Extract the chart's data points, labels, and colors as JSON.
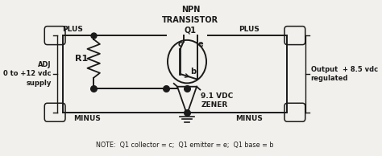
{
  "bg_color": "#f2f0ec",
  "line_color": "#1a1a1a",
  "title_text": "NPN\nTRANSISTOR\nQ1",
  "label_plus_left": "PLUS",
  "label_plus_right": "PLUS",
  "label_minus_left": "MINUS",
  "label_minus_right": "MINUS",
  "label_adj": "ADJ\n0 to +12 vdc\nsupply",
  "label_output": "Output  + 8.5 vdc\nregulated",
  "label_r1": "R1",
  "label_zener": "9.1 VDC\nZENER",
  "label_c": "c",
  "label_e": "e",
  "label_b": "b",
  "note": "NOTE:  Q1 collector = c;  Q1 emitter = e;  Q1 base = b",
  "dot_color": "#1a1a1a"
}
